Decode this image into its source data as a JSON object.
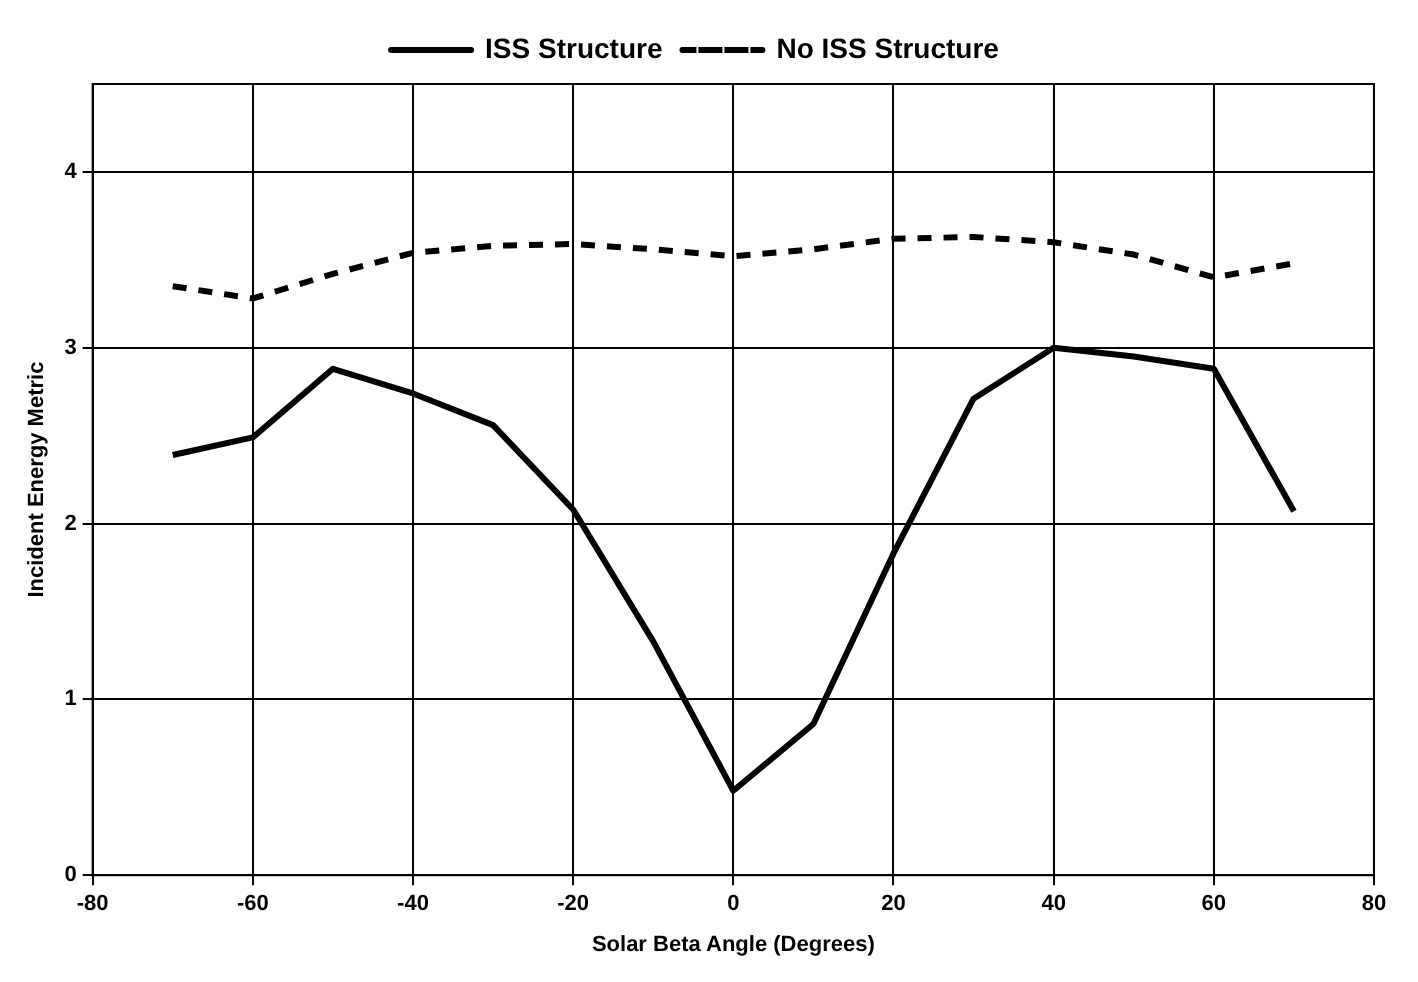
{
  "chart_data": {
    "type": "line",
    "xlabel": "Solar Beta Angle (Degrees)",
    "ylabel": "Incident Energy Metric",
    "x": [
      -70,
      -60,
      -50,
      -40,
      -30,
      -20,
      -10,
      0,
      10,
      20,
      30,
      40,
      50,
      60,
      70
    ],
    "series": [
      {
        "name": "ISS Structure",
        "color": "#000000",
        "line_style": "solid",
        "values": [
          2.39,
          2.49,
          2.88,
          2.74,
          2.56,
          2.08,
          1.33,
          0.48,
          0.86,
          1.83,
          2.71,
          3.0,
          2.95,
          2.88,
          2.07
        ]
      },
      {
        "name": "No ISS Structure",
        "color": "#000000",
        "line_style": "dashed",
        "values": [
          3.35,
          3.28,
          3.42,
          3.54,
          3.58,
          3.59,
          3.56,
          3.52,
          3.56,
          3.62,
          3.63,
          3.6,
          3.53,
          3.4,
          3.48
        ]
      }
    ],
    "xlim": [
      -80,
      80
    ],
    "xticks": [
      -80,
      -60,
      -40,
      -20,
      0,
      20,
      40,
      60,
      80
    ],
    "ylim": [
      0,
      4.5
    ],
    "yticks": [
      0,
      1,
      2,
      3,
      4
    ],
    "grid": true,
    "legend": "top",
    "marker": "none"
  }
}
